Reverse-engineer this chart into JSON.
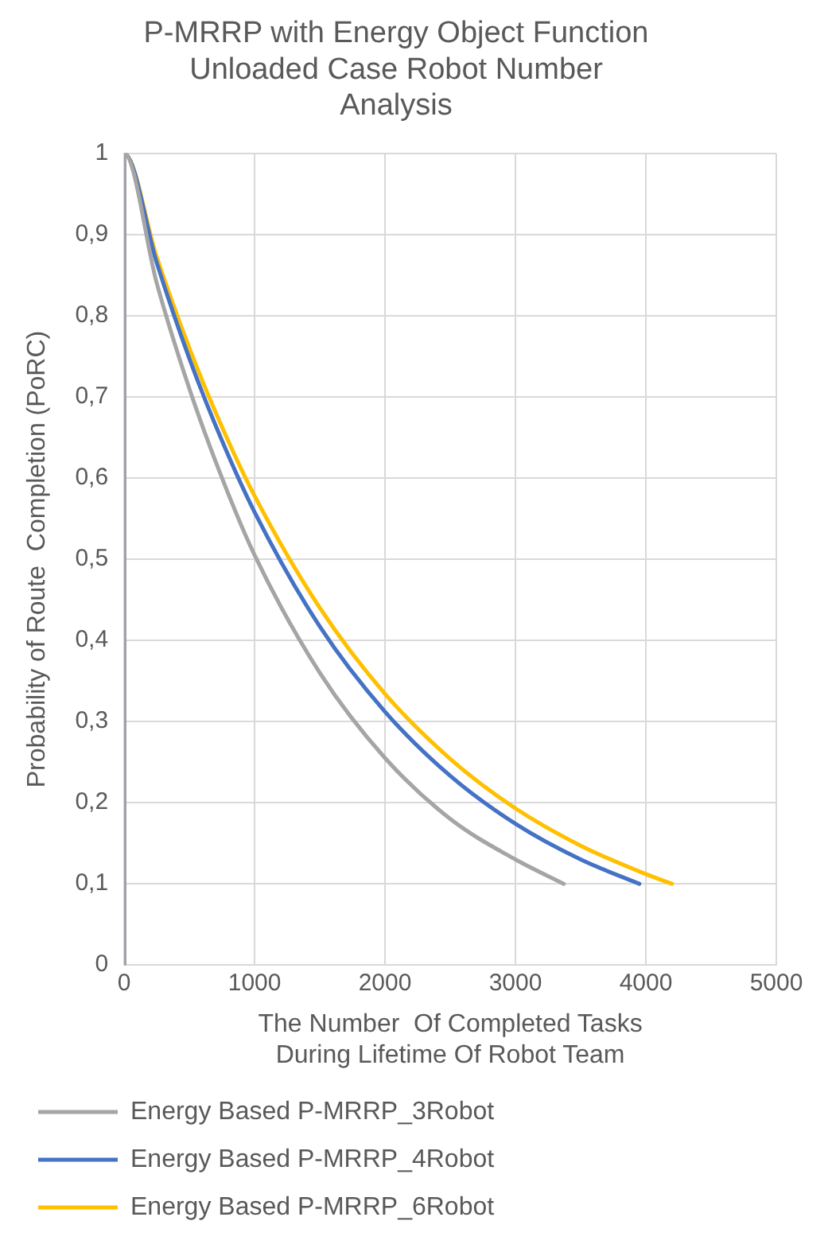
{
  "chart_data": {
    "type": "line",
    "title": [
      "P-MRRP with Energy Object Function",
      "Unloaded Case Robot Number",
      "Analysis"
    ],
    "xlabel": [
      "The Number  Of Completed Tasks",
      "During Lifetime Of Robot Team"
    ],
    "ylabel": "Probability of Route  Completion (PoRC)",
    "xlim": [
      0,
      5000
    ],
    "xticks": [
      0,
      1000,
      2000,
      3000,
      4000,
      5000
    ],
    "ylim": [
      0,
      1
    ],
    "yticks": [
      0,
      {
        "value": 0.1,
        "label": "0,1"
      },
      {
        "value": 0.2,
        "label": "0,2"
      },
      {
        "value": 0.3,
        "label": "0,3"
      },
      {
        "value": 0.4,
        "label": "0,4"
      },
      {
        "value": 0.5,
        "label": "0,5"
      },
      {
        "value": 0.6,
        "label": "0,6"
      },
      {
        "value": 0.7,
        "label": "0,7"
      },
      {
        "value": 0.8,
        "label": "0,8"
      },
      {
        "value": 0.9,
        "label": "0,9"
      },
      1
    ],
    "grid": true,
    "legend": "bottom",
    "marker": "none",
    "line_style": "solid",
    "series": [
      {
        "name": "Energy Based P-MRRP_3Robot",
        "color": "#a5a5a5",
        "x": [
          0,
          0,
          250,
          500,
          750,
          1000,
          1500,
          2000,
          2500,
          3000,
          3370
        ],
        "values": [
          0,
          1,
          0.84,
          0.71,
          0.6,
          0.505,
          0.36,
          0.255,
          0.18,
          0.13,
          0.1
        ]
      },
      {
        "name": "Energy Based P-MRRP_4Robot",
        "color": "#4472c4",
        "x": [
          0,
          0,
          250,
          500,
          750,
          1000,
          1500,
          2000,
          2500,
          3000,
          3500,
          3950
        ],
        "values": [
          0,
          1,
          0.865,
          0.747,
          0.646,
          0.558,
          0.417,
          0.312,
          0.233,
          0.174,
          0.13,
          0.1
        ]
      },
      {
        "name": "Energy Based P-MRRP_6Robot",
        "color": "#ffc000",
        "x": [
          0,
          0,
          250,
          500,
          750,
          1000,
          1500,
          2000,
          2500,
          3000,
          3500,
          4000,
          4200
        ],
        "values": [
          0,
          1,
          0.872,
          0.76,
          0.663,
          0.578,
          0.44,
          0.334,
          0.254,
          0.193,
          0.147,
          0.112,
          0.1
        ]
      }
    ]
  }
}
